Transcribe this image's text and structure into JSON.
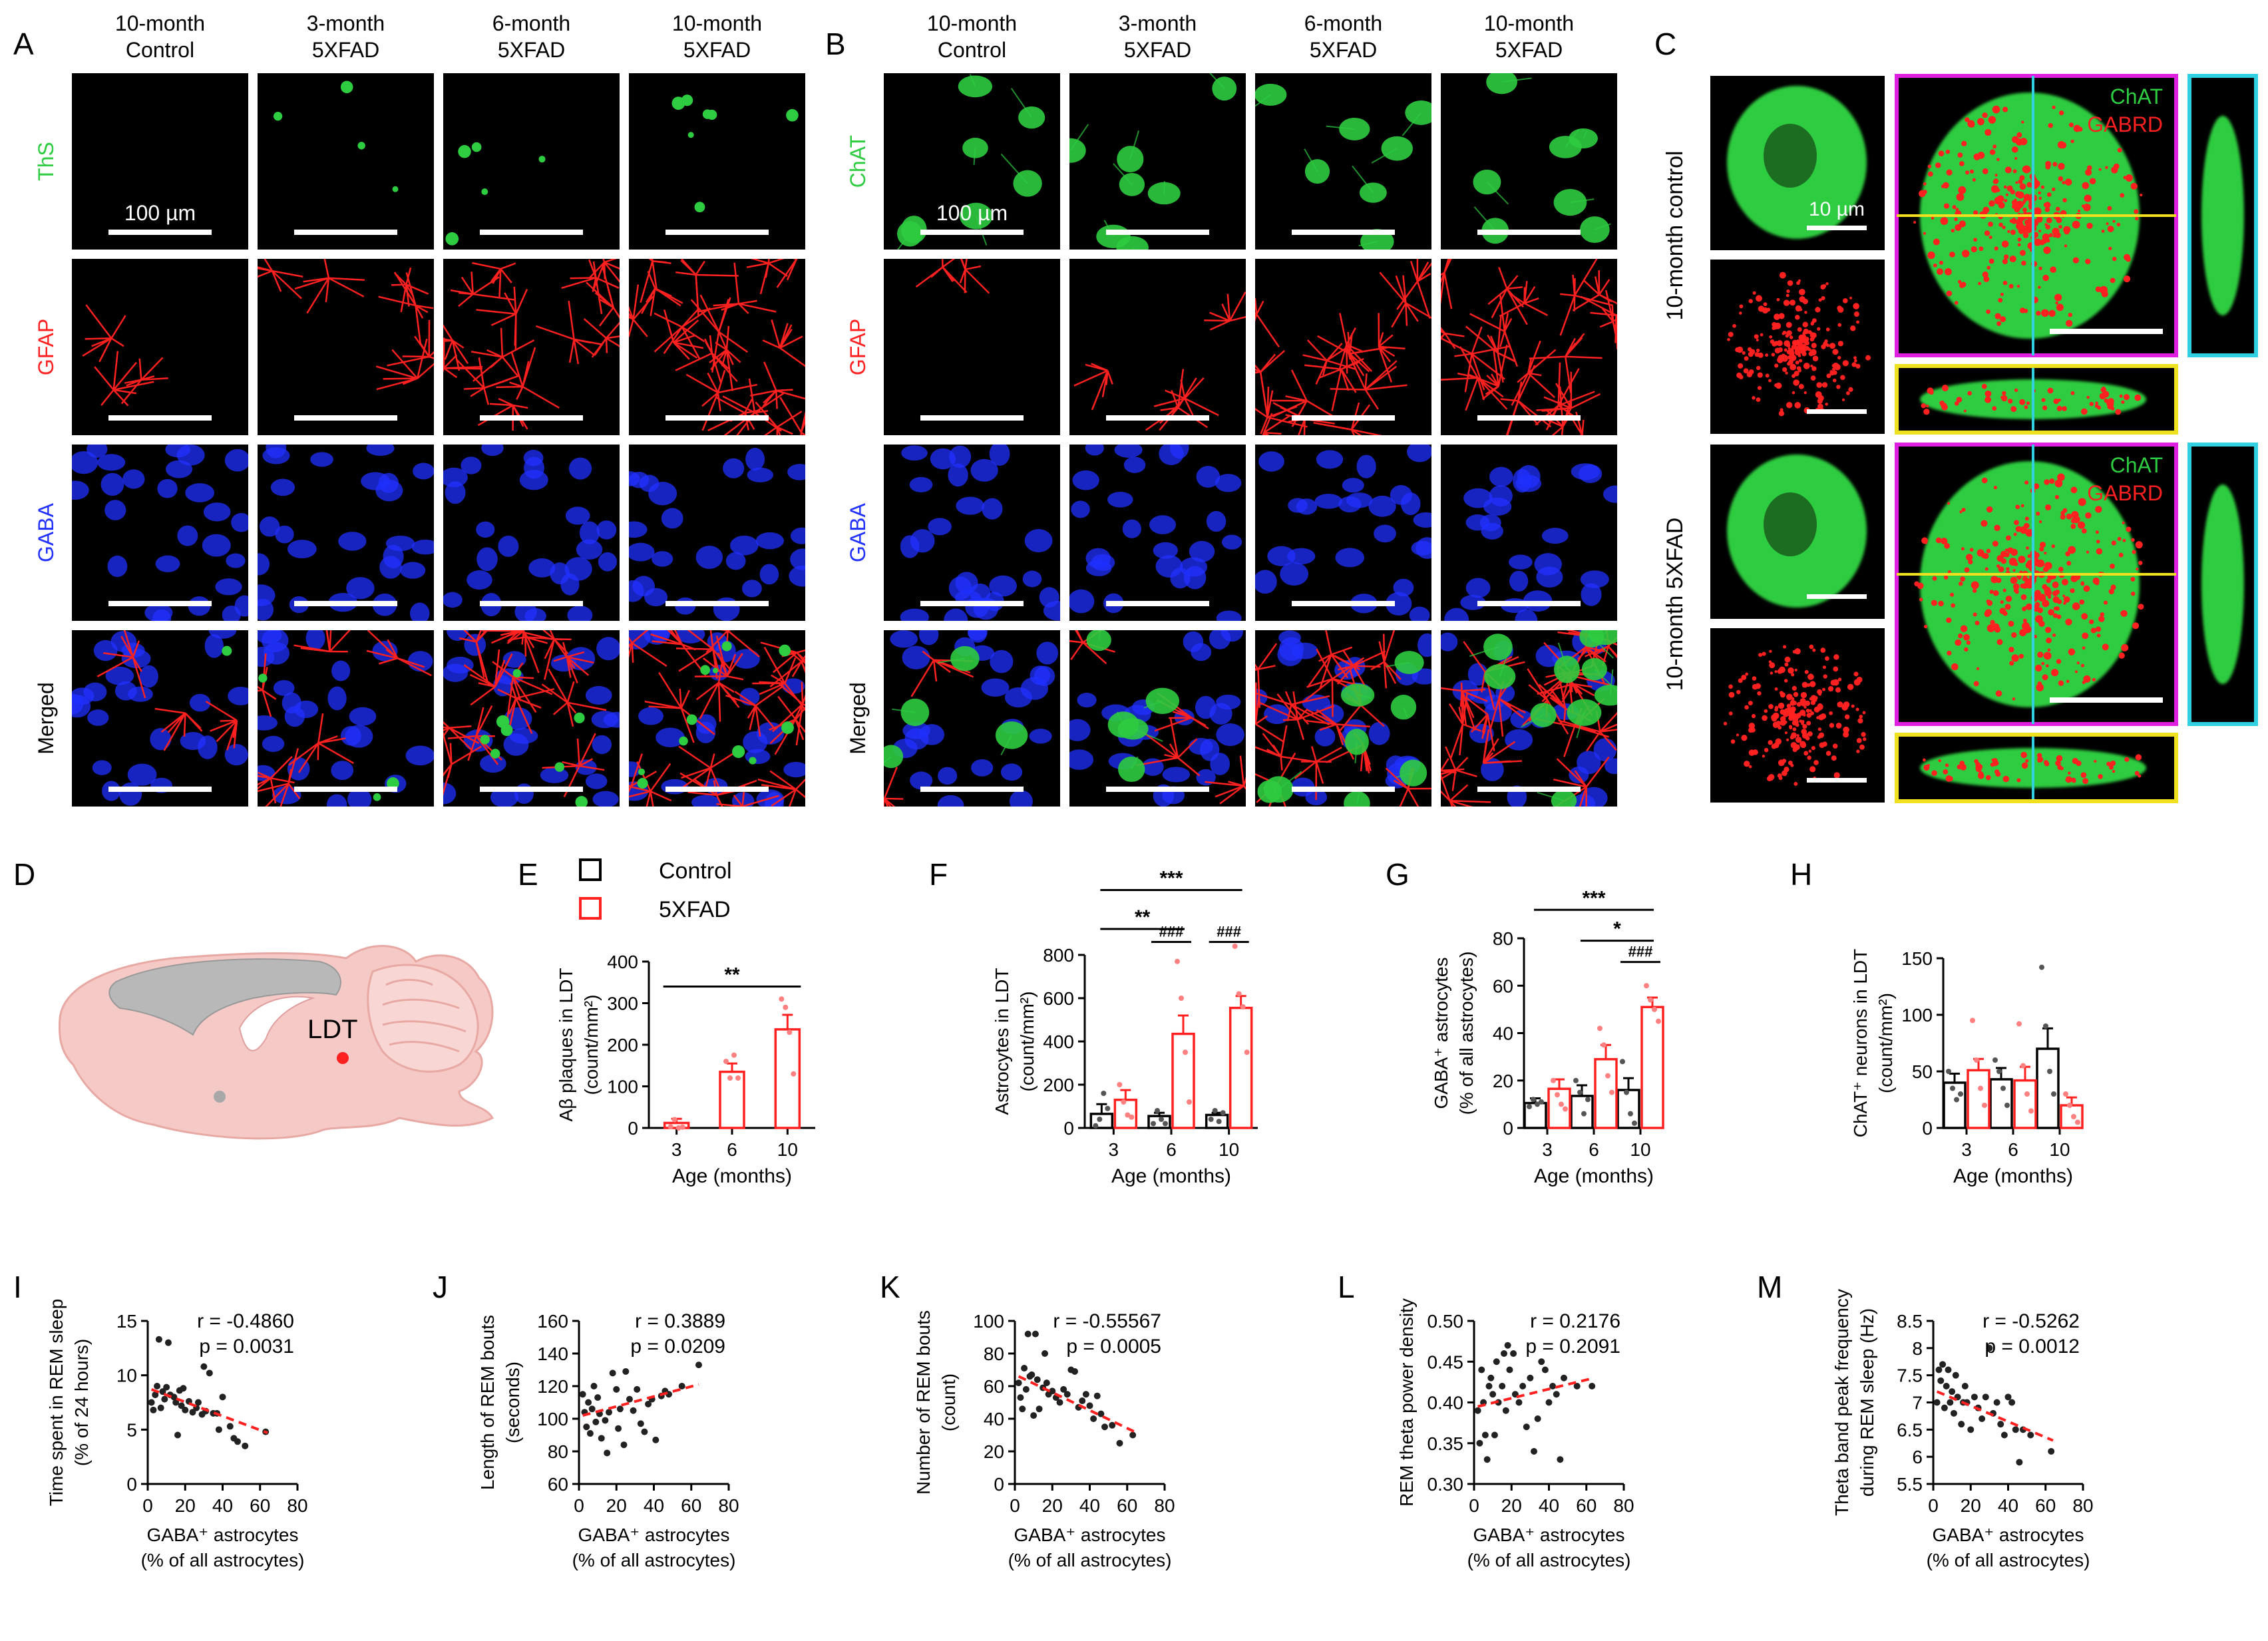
{
  "panel_letters": [
    "A",
    "B",
    "C",
    "D",
    "E",
    "F",
    "G",
    "H",
    "I",
    "J",
    "K",
    "L",
    "M"
  ],
  "microscopy": {
    "columns": [
      "10-month\nControl",
      "3-month\n5XFAD",
      "6-month\n5XFAD",
      "10-month\n5XFAD"
    ],
    "rows_A": [
      "ThS",
      "GFAP",
      "GABA",
      "Merged"
    ],
    "rows_B": [
      "ChAT",
      "GFAP",
      "GABA",
      "Merged"
    ],
    "scale_label_AB": "100 µm",
    "scale_label_C": "10  µm",
    "c_rows": [
      "10-month control",
      "10-month 5XFAD"
    ],
    "c_channels": [
      "ChAT",
      "GABRD"
    ],
    "colors": {
      "green": "#2ecc40",
      "red": "#ff2020",
      "blue": "#2030ff",
      "magenta": "#e020e0",
      "cyan": "#30d0e0",
      "yellow": "#f0e020"
    }
  },
  "diagram_D": {
    "label": "LDT"
  },
  "legend": {
    "control": "Control",
    "fad": "5XFAD",
    "control_color": "#000000",
    "fad_color": "#ff2020"
  },
  "chart_data": [
    {
      "panel": "E",
      "type": "bar",
      "categories": [
        "3",
        "6",
        "10"
      ],
      "series": [
        {
          "name": "5XFAD",
          "values": [
            12,
            135,
            237
          ],
          "err": [
            10,
            20,
            35
          ],
          "points": [
            [
              3,
              20,
              0,
              2
            ],
            [
              160,
              120,
              175,
              120
            ],
            [
              310,
              290,
              230,
              130
            ]
          ]
        }
      ],
      "ylabel": "Aβ plaques in LDT\n(count/mm²)",
      "xlabel": "Age (months)",
      "yticks": [
        0,
        100,
        200,
        300,
        400
      ],
      "ylim": [
        0,
        400
      ],
      "sig": [
        {
          "text": "**",
          "from": 0,
          "to": 2,
          "y": 340
        }
      ]
    },
    {
      "panel": "F",
      "type": "bar",
      "categories": [
        "3",
        "6",
        "10"
      ],
      "series": [
        {
          "name": "Control",
          "values": [
            65,
            55,
            60
          ],
          "err": [
            45,
            15,
            10
          ],
          "points": [
            [
              10,
              40,
              160,
              90
            ],
            [
              20,
              80,
              40,
              20
            ],
            [
              40,
              80,
              30,
              70
            ]
          ]
        },
        {
          "name": "5XFAD",
          "values": [
            130,
            435,
            555
          ],
          "err": [
            45,
            85,
            55
          ],
          "points": [
            [
              200,
              120,
              60,
              50
            ],
            [
              770,
              600,
              350,
              120
            ],
            [
              850,
              620,
              560,
              350
            ]
          ]
        }
      ],
      "ylabel": "Astrocytes in LDT\n(count/mm²)",
      "xlabel": "Age (months)",
      "yticks": [
        0,
        200,
        400,
        600,
        800
      ],
      "ylim": [
        0,
        800
      ],
      "sig": [
        {
          "text": "**",
          "from": 0,
          "to": 1,
          "y": 920
        },
        {
          "text": "***",
          "from": 0,
          "to": 2,
          "y": 1100
        }
      ],
      "hash": [
        {
          "text": "###",
          "group": 1,
          "y": 860
        },
        {
          "text": "###",
          "group": 2,
          "y": 860
        }
      ]
    },
    {
      "panel": "G",
      "type": "bar",
      "categories": [
        "3",
        "6",
        "10"
      ],
      "series": [
        {
          "name": "Control",
          "values": [
            10.5,
            13.5,
            16
          ],
          "err": [
            2,
            4.5,
            5
          ],
          "points": [
            [
              9,
              12,
              10,
              11
            ],
            [
              20,
              15,
              6,
              12
            ],
            [
              28,
              15,
              6,
              2
            ]
          ]
        },
        {
          "name": "5XFAD",
          "values": [
            16.5,
            29,
            51
          ],
          "err": [
            4,
            6,
            4
          ],
          "points": [
            [
              20,
              14,
              10,
              8
            ],
            [
              42,
              35,
              22,
              15
            ],
            [
              60,
              54,
              50,
              45
            ]
          ]
        }
      ],
      "ylabel": "GABA⁺ astrocytes\n(% of all astrocytes)",
      "xlabel": "Age (months)",
      "yticks": [
        0,
        20,
        40,
        60,
        80
      ],
      "ylim": [
        0,
        80
      ],
      "sig": [
        {
          "text": "*",
          "from": 1,
          "to": 2,
          "y": 79
        },
        {
          "text": "***",
          "from": 0,
          "to": 2,
          "y": 92
        }
      ],
      "hash": [
        {
          "text": "###",
          "group": 2,
          "y": 70
        }
      ]
    },
    {
      "panel": "H",
      "type": "bar",
      "categories": [
        "3",
        "6",
        "10"
      ],
      "series": [
        {
          "name": "Control",
          "values": [
            40,
            43,
            70
          ],
          "err": [
            8,
            10,
            18
          ],
          "points": [
            [
              50,
              35,
              25,
              30
            ],
            [
              60,
              50,
              35,
              20
            ],
            [
              142,
              90,
              50,
              30
            ]
          ]
        },
        {
          "name": "5XFAD",
          "values": [
            51,
            42,
            20
          ],
          "err": [
            10,
            12,
            7
          ],
          "points": [
            [
              95,
              60,
              35,
              20
            ],
            [
              92,
              55,
              30,
              15
            ],
            [
              30,
              20,
              10,
              5
            ]
          ]
        }
      ],
      "ylabel": "ChAT⁺ neurons in LDT\n(count/mm²)",
      "xlabel": "Age (months)",
      "yticks": [
        0,
        50,
        100,
        150
      ],
      "ylim": [
        0,
        150
      ],
      "sig": [],
      "hash": []
    },
    {
      "panel": "I",
      "type": "scatter",
      "xlabel": "GABA⁺ astrocytes\n(% of all astrocytes)",
      "ylabel": "Time spent in REM sleep\n(% of 24 hours)",
      "xticks": [
        0,
        20,
        40,
        60,
        80
      ],
      "yticks": [
        0,
        5,
        10,
        15
      ],
      "xlim": [
        0,
        80
      ],
      "ylim": [
        0,
        15
      ],
      "r": "r = -0.4860",
      "p": "p = 0.0031",
      "fit": [
        [
          2,
          8.7
        ],
        [
          64,
          4.7
        ]
      ],
      "points": [
        [
          2,
          7.5
        ],
        [
          3,
          6.8
        ],
        [
          4,
          8.2
        ],
        [
          5,
          9
        ],
        [
          6,
          13.3
        ],
        [
          7,
          7
        ],
        [
          8,
          8.5
        ],
        [
          9,
          7.8
        ],
        [
          10,
          8.9
        ],
        [
          11,
          13
        ],
        [
          12,
          8.2
        ],
        [
          14,
          8
        ],
        [
          15,
          7.5
        ],
        [
          16,
          4.5
        ],
        [
          17,
          8.6
        ],
        [
          18,
          7.2
        ],
        [
          19,
          8.8
        ],
        [
          20,
          6.8
        ],
        [
          22,
          7.6
        ],
        [
          24,
          6.6
        ],
        [
          26,
          7
        ],
        [
          27,
          7.5
        ],
        [
          29,
          6.4
        ],
        [
          30,
          10.8
        ],
        [
          31,
          6.7
        ],
        [
          33,
          10.2
        ],
        [
          35,
          6.5
        ],
        [
          37,
          6.5
        ],
        [
          38,
          5
        ],
        [
          40,
          8
        ],
        [
          44,
          5.3
        ],
        [
          46,
          4.2
        ],
        [
          48,
          3.9
        ],
        [
          52,
          3.5
        ],
        [
          63,
          4.8
        ]
      ]
    },
    {
      "panel": "J",
      "type": "scatter",
      "xlabel": "GABA⁺ astrocytes\n(% of all astrocytes)",
      "ylabel": "Length of REM bouts\n(seconds)",
      "xticks": [
        0,
        20,
        40,
        60,
        80
      ],
      "yticks": [
        60,
        80,
        100,
        120,
        140,
        160
      ],
      "xlim": [
        0,
        80
      ],
      "ylim": [
        60,
        160
      ],
      "r": "r = 0.3889",
      "p": "p = 0.0209",
      "fit": [
        [
          2,
          102
        ],
        [
          64,
          121
        ]
      ],
      "points": [
        [
          2,
          115
        ],
        [
          3,
          104
        ],
        [
          4,
          95
        ],
        [
          5,
          110
        ],
        [
          6,
          91
        ],
        [
          7,
          106
        ],
        [
          8,
          120
        ],
        [
          9,
          98
        ],
        [
          10,
          113
        ],
        [
          11,
          103
        ],
        [
          12,
          88
        ],
        [
          14,
          99
        ],
        [
          15,
          79
        ],
        [
          16,
          104
        ],
        [
          18,
          128
        ],
        [
          20,
          118
        ],
        [
          21,
          94
        ],
        [
          22,
          106
        ],
        [
          24,
          84
        ],
        [
          25,
          129
        ],
        [
          27,
          112
        ],
        [
          29,
          105
        ],
        [
          31,
          118
        ],
        [
          33,
          97
        ],
        [
          35,
          92
        ],
        [
          37,
          109
        ],
        [
          39,
          112
        ],
        [
          41,
          87
        ],
        [
          44,
          114
        ],
        [
          46,
          117
        ],
        [
          48,
          115
        ],
        [
          55,
          120
        ],
        [
          64,
          133
        ]
      ]
    },
    {
      "panel": "K",
      "type": "scatter",
      "xlabel": "GABA⁺ astrocytes\n(% of all astrocytes)",
      "ylabel": "Number of REM bouts\n(count)",
      "xticks": [
        0,
        20,
        40,
        60,
        80
      ],
      "yticks": [
        0,
        20,
        40,
        60,
        80,
        100
      ],
      "xlim": [
        0,
        80
      ],
      "ylim": [
        0,
        100
      ],
      "r": "r = -0.55567",
      "p": "p = 0.0005",
      "fit": [
        [
          2,
          66
        ],
        [
          64,
          32
        ]
      ],
      "points": [
        [
          2,
          62
        ],
        [
          3,
          53
        ],
        [
          4,
          46
        ],
        [
          5,
          71
        ],
        [
          6,
          58
        ],
        [
          7,
          92
        ],
        [
          8,
          66
        ],
        [
          9,
          67
        ],
        [
          10,
          42
        ],
        [
          11,
          92
        ],
        [
          12,
          64
        ],
        [
          13,
          46
        ],
        [
          15,
          59
        ],
        [
          16,
          80
        ],
        [
          17,
          62
        ],
        [
          18,
          55
        ],
        [
          20,
          57
        ],
        [
          22,
          53
        ],
        [
          24,
          50
        ],
        [
          26,
          58
        ],
        [
          28,
          55
        ],
        [
          30,
          70
        ],
        [
          32,
          69
        ],
        [
          34,
          47
        ],
        [
          36,
          51
        ],
        [
          38,
          55
        ],
        [
          40,
          48
        ],
        [
          42,
          40
        ],
        [
          44,
          54
        ],
        [
          46,
          43
        ],
        [
          48,
          35
        ],
        [
          52,
          36
        ],
        [
          56,
          25
        ],
        [
          63,
          30
        ]
      ]
    },
    {
      "panel": "L",
      "type": "scatter",
      "xlabel": "GABA⁺ astrocytes\n(% of all astrocytes)",
      "ylabel": "REM theta power density",
      "xticks": [
        0,
        20,
        40,
        60,
        80
      ],
      "yticks": [
        0.3,
        0.35,
        0.4,
        0.45,
        0.5
      ],
      "xlim": [
        0,
        80
      ],
      "ylim": [
        0.3,
        0.5
      ],
      "r": "r = 0.2176",
      "p": "p = 0.2091",
      "fit": [
        [
          2,
          0.395
        ],
        [
          64,
          0.43
        ]
      ],
      "points": [
        [
          2,
          0.39
        ],
        [
          3,
          0.35
        ],
        [
          4,
          0.44
        ],
        [
          5,
          0.4
        ],
        [
          6,
          0.36
        ],
        [
          7,
          0.33
        ],
        [
          8,
          0.42
        ],
        [
          9,
          0.43
        ],
        [
          10,
          0.41
        ],
        [
          11,
          0.36
        ],
        [
          12,
          0.45
        ],
        [
          13,
          0.4
        ],
        [
          15,
          0.42
        ],
        [
          16,
          0.46
        ],
        [
          17,
          0.39
        ],
        [
          18,
          0.47
        ],
        [
          19,
          0.44
        ],
        [
          21,
          0.46
        ],
        [
          22,
          0.41
        ],
        [
          24,
          0.4
        ],
        [
          26,
          0.42
        ],
        [
          28,
          0.37
        ],
        [
          30,
          0.43
        ],
        [
          32,
          0.34
        ],
        [
          34,
          0.38
        ],
        [
          36,
          0.45
        ],
        [
          38,
          0.44
        ],
        [
          40,
          0.4
        ],
        [
          42,
          0.42
        ],
        [
          44,
          0.41
        ],
        [
          46,
          0.33
        ],
        [
          48,
          0.43
        ],
        [
          55,
          0.42
        ],
        [
          63,
          0.42
        ]
      ]
    },
    {
      "panel": "M",
      "type": "scatter",
      "xlabel": "GABA⁺ astrocytes\n(% of all astrocytes)",
      "ylabel": "Theta band peak frequency\nduring REM sleep (Hz)",
      "xticks": [
        0,
        20,
        40,
        60,
        80
      ],
      "yticks": [
        5.5,
        6.0,
        6.5,
        7.0,
        7.5,
        8.0,
        8.5
      ],
      "xlim": [
        0,
        80
      ],
      "ylim": [
        5.5,
        8.5
      ],
      "r": "r = -0.5262",
      "p": "p = 0.0012",
      "fit": [
        [
          2,
          7.2
        ],
        [
          64,
          6.3
        ]
      ],
      "points": [
        [
          2,
          7.0
        ],
        [
          3,
          7.6
        ],
        [
          4,
          7.4
        ],
        [
          5,
          7.7
        ],
        [
          6,
          6.9
        ],
        [
          7,
          7.3
        ],
        [
          8,
          7.6
        ],
        [
          9,
          7.0
        ],
        [
          10,
          7.2
        ],
        [
          11,
          6.8
        ],
        [
          12,
          7.5
        ],
        [
          13,
          7.1
        ],
        [
          15,
          6.6
        ],
        [
          16,
          7.0
        ],
        [
          17,
          7.3
        ],
        [
          18,
          7.0
        ],
        [
          20,
          6.5
        ],
        [
          22,
          7.1
        ],
        [
          24,
          6.9
        ],
        [
          26,
          6.7
        ],
        [
          28,
          7.1
        ],
        [
          30,
          8.0
        ],
        [
          32,
          6.8
        ],
        [
          34,
          7.0
        ],
        [
          36,
          6.6
        ],
        [
          38,
          6.4
        ],
        [
          40,
          7.1
        ],
        [
          42,
          7.0
        ],
        [
          44,
          6.5
        ],
        [
          46,
          5.9
        ],
        [
          48,
          6.5
        ],
        [
          52,
          6.4
        ],
        [
          63,
          6.1
        ]
      ]
    }
  ]
}
